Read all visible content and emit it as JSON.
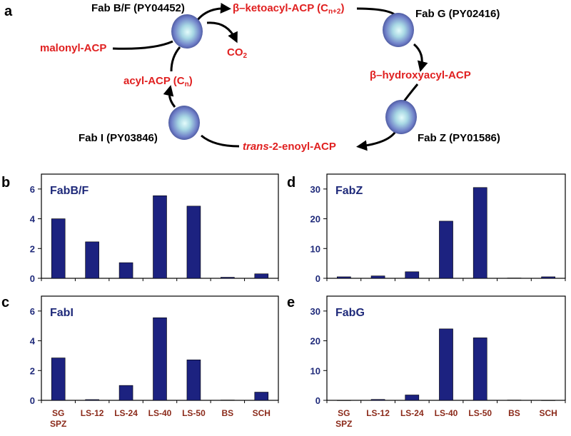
{
  "panel_a": {
    "letter": "a",
    "enzymes": {
      "fab_bf": "Fab B/F (PY04452)",
      "fab_g": "Fab G (PY02416)",
      "fab_z": "Fab Z (PY01586)",
      "fab_i": "Fab I (PY03846)"
    },
    "metabolites": {
      "ketoacyl": "β–ketoacyl-ACP (C",
      "ketoacyl_sub": "n+2",
      "ketoacyl_end": ")",
      "malonyl": "malonyl-ACP",
      "co2": "CO",
      "co2_sub": "2",
      "acyl": "acyl-ACP (C",
      "acyl_sub": "n",
      "acyl_end": ")",
      "hydroxyacyl": "β–hydroxyacyl-ACP",
      "enoyl_italic": "trans",
      "enoyl_rest": "-2-enoyl-ACP"
    },
    "colors": {
      "enzyme_text": "#000000",
      "metabolite_text": "#e02020",
      "sphere": "#7d8fd0"
    }
  },
  "chart_data": [
    {
      "panel": "b",
      "type": "bar",
      "title": "FabB/F",
      "categories": [
        "SG SPZ",
        "LS-12",
        "LS-24",
        "LS-40",
        "LS-50",
        "BS",
        "SCH"
      ],
      "values": [
        4.0,
        2.45,
        1.05,
        5.55,
        4.85,
        0.07,
        0.3
      ],
      "ylim": [
        0,
        7
      ],
      "yticks": [
        0,
        2,
        4,
        6
      ],
      "show_xlabels": false
    },
    {
      "panel": "c",
      "type": "bar",
      "title": "FabI",
      "categories": [
        "SG SPZ",
        "LS-12",
        "LS-24",
        "LS-40",
        "LS-50",
        "BS",
        "SCH"
      ],
      "values": [
        2.85,
        0.05,
        1.0,
        5.55,
        2.72,
        0.02,
        0.55
      ],
      "ylim": [
        0,
        7
      ],
      "yticks": [
        0,
        2,
        4,
        6
      ],
      "show_xlabels": true
    },
    {
      "panel": "d",
      "type": "bar",
      "title": "FabZ",
      "categories": [
        "SG SPZ",
        "LS-12",
        "LS-24",
        "LS-40",
        "LS-50",
        "BS",
        "SCH"
      ],
      "values": [
        0.5,
        0.8,
        2.2,
        19.2,
        30.5,
        0.1,
        0.5
      ],
      "ylim": [
        0,
        35
      ],
      "yticks": [
        0,
        10,
        20,
        30
      ],
      "show_xlabels": false
    },
    {
      "panel": "e",
      "type": "bar",
      "title": "FabG",
      "categories": [
        "SG SPZ",
        "LS-12",
        "LS-24",
        "LS-40",
        "LS-50",
        "BS",
        "SCH"
      ],
      "values": [
        0.05,
        0.3,
        1.8,
        24.0,
        21.0,
        0.1,
        0.05
      ],
      "ylim": [
        0,
        35
      ],
      "yticks": [
        0,
        10,
        20,
        30
      ],
      "show_xlabels": true
    }
  ],
  "bar_color": "#1c2280"
}
